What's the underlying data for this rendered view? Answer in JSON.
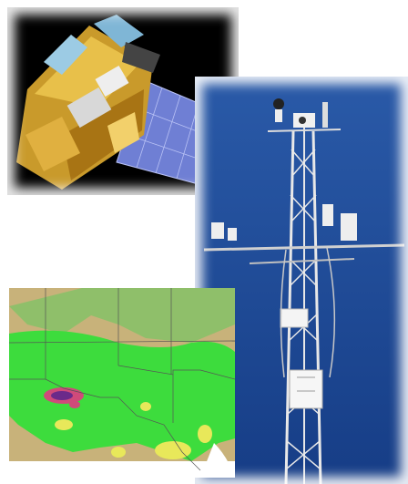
{
  "images": {
    "satellite": {
      "icon": "satellite-icon",
      "background": "#000000"
    },
    "tower": {
      "icon": "weather-tower-icon",
      "sky": "#1f4e9a"
    },
    "map": {
      "icon": "precipitation-map-icon",
      "land": "#3ddc3d",
      "desert": "#c8b27a"
    }
  }
}
